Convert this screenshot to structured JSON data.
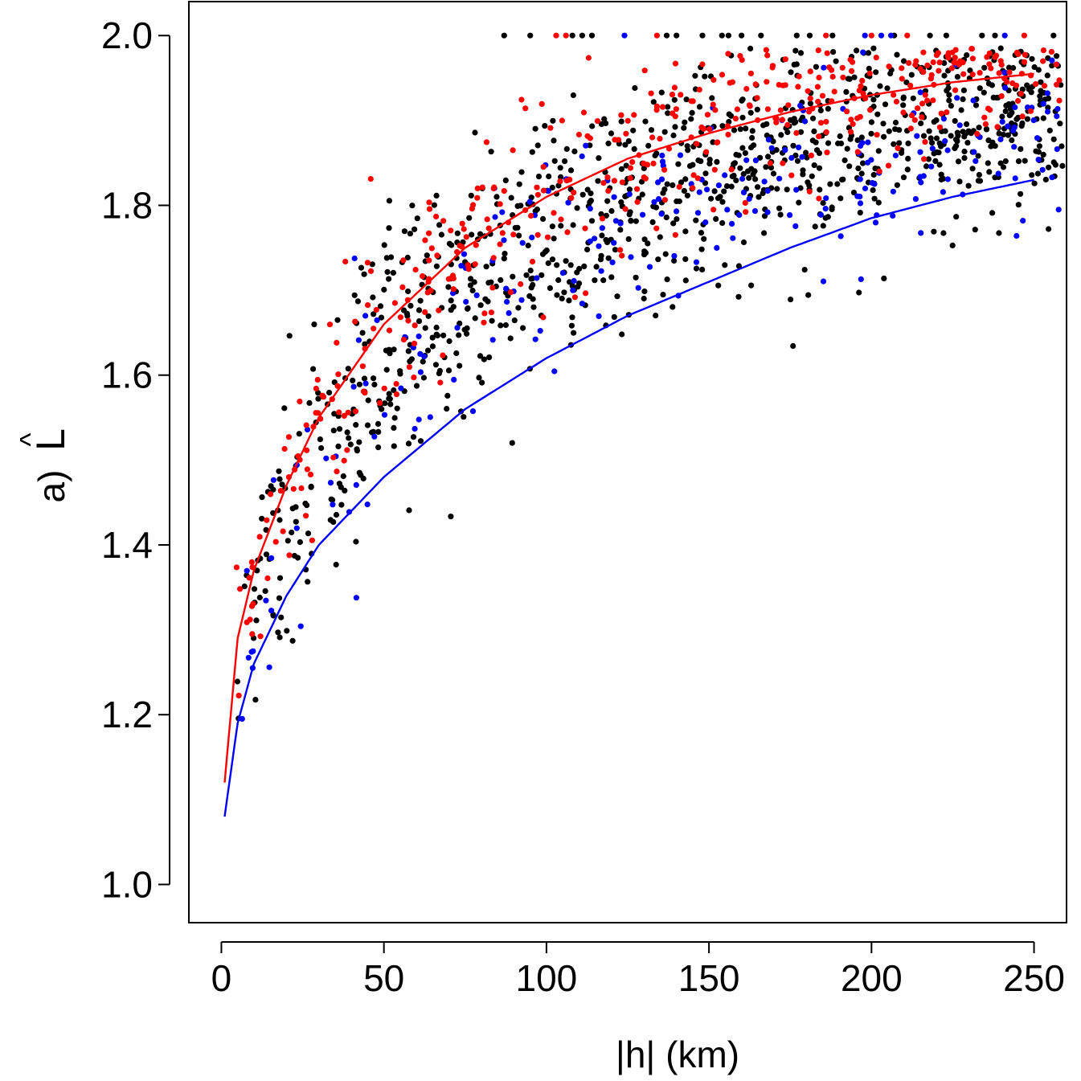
{
  "chart_data": {
    "type": "scatter",
    "xlabel": "|h| (km)",
    "ylabel_prefix": "a)",
    "ylabel_symbol": "L",
    "ylabel_accent": "^",
    "xlim": [
      -10,
      260
    ],
    "ylim": [
      0.955,
      2.04
    ],
    "x_ticks": [
      0,
      50,
      100,
      150,
      200,
      250
    ],
    "x_tick_labels": [
      "0",
      "50",
      "100",
      "150",
      "200",
      "250"
    ],
    "y_ticks": [
      1.0,
      1.2,
      1.4,
      1.6,
      1.8,
      2.0
    ],
    "y_tick_labels": [
      "1.0",
      "1.2",
      "1.4",
      "1.6",
      "1.8",
      "2.0"
    ],
    "grid": false,
    "legend": "none",
    "colors": {
      "black": "#000000",
      "red": "#ff0000",
      "blue": "#0000ff"
    },
    "fitted_curves": [
      {
        "color": "#ff0000",
        "x": [
          1,
          5,
          10,
          20,
          30,
          50,
          75,
          100,
          125,
          150,
          175,
          200,
          225,
          250
        ],
        "y": [
          1.12,
          1.29,
          1.37,
          1.47,
          1.55,
          1.66,
          1.75,
          1.81,
          1.855,
          1.885,
          1.91,
          1.93,
          1.945,
          1.955
        ]
      },
      {
        "color": "#0000ff",
        "x": [
          1,
          5,
          10,
          20,
          30,
          50,
          75,
          100,
          125,
          150,
          175,
          200,
          225,
          250
        ],
        "y": [
          1.08,
          1.19,
          1.26,
          1.34,
          1.4,
          1.48,
          1.56,
          1.62,
          1.67,
          1.71,
          1.75,
          1.785,
          1.81,
          1.83
        ]
      }
    ],
    "series": [
      {
        "name": "",
        "color": "#000000",
        "n": 1000,
        "seed": 11,
        "offset": -0.05,
        "noise": 0.07
      },
      {
        "name": "",
        "color": "#ff0000",
        "n": 430,
        "seed": 23,
        "offset": 0.0,
        "noise": 0.055
      },
      {
        "name": "",
        "color": "#0000ff",
        "n": 230,
        "seed": 37,
        "offset": -0.07,
        "noise": 0.065
      }
    ],
    "top_row_points": [
      {
        "color": "#000000",
        "x": [
          87,
          95,
          108,
          111,
          114,
          137,
          140,
          148,
          154,
          156,
          160,
          166,
          177,
          181,
          188,
          207,
          218,
          223,
          234,
          238,
          256
        ]
      },
      {
        "color": "#ff0000",
        "x": [
          103,
          106,
          134,
          186,
          200,
          211,
          247
        ]
      },
      {
        "color": "#0000ff",
        "x": [
          124,
          198,
          203,
          206,
          241
        ]
      }
    ]
  }
}
